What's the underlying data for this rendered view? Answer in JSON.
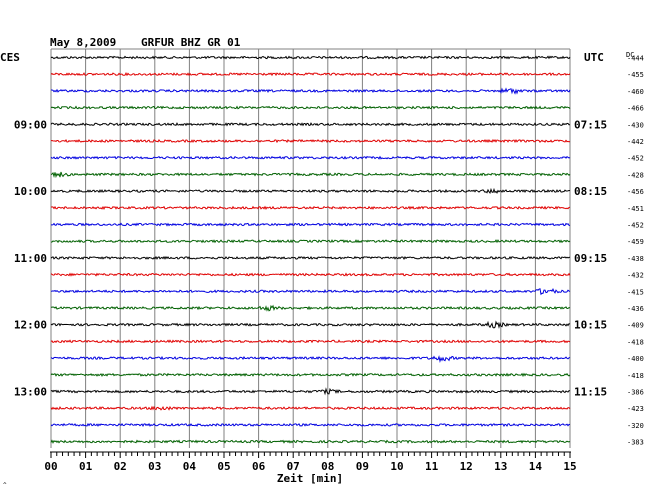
{
  "header": {
    "date": "May 8,2009",
    "station": "GRFUR BHZ GR 01",
    "left_zone": "CES",
    "right_zone": "UTC",
    "dc_label": "DC"
  },
  "colors": {
    "background": "#ffffff",
    "grid": "#808080",
    "trace_colors": [
      "#000000",
      "#e00000",
      "#0000e0",
      "#006000"
    ]
  },
  "chart_data": {
    "type": "line",
    "title": "May 8,2009   GRFUR BHZ GR 01",
    "xlabel": "Zeit [min]",
    "ylabel": "",
    "xlim": [
      0,
      15
    ],
    "x_ticks": [
      "00",
      "01",
      "02",
      "03",
      "04",
      "05",
      "06",
      "07",
      "08",
      "09",
      "10",
      "11",
      "12",
      "13",
      "14",
      "15"
    ],
    "trace_count": 24,
    "minutes_per_trace": 15,
    "left_time_labels": [
      {
        "trace": 4,
        "label": "09:00"
      },
      {
        "trace": 8,
        "label": "10:00"
      },
      {
        "trace": 12,
        "label": "11:00"
      },
      {
        "trace": 16,
        "label": "12:00"
      },
      {
        "trace": 20,
        "label": "13:00"
      }
    ],
    "right_time_labels": [
      {
        "trace": 4,
        "label": "07:15"
      },
      {
        "trace": 8,
        "label": "08:15"
      },
      {
        "trace": 12,
        "label": "09:15"
      },
      {
        "trace": 16,
        "label": "10:15"
      },
      {
        "trace": 20,
        "label": "11:15"
      }
    ],
    "dc_offsets": [
      "-444",
      "-455",
      "-460",
      "-466",
      "-430",
      "-442",
      "-452",
      "-428",
      "-456",
      "-451",
      "-452",
      "-459",
      "-438",
      "-432",
      "-415",
      "-436",
      "-409",
      "-418",
      "-400",
      "-418",
      "-386",
      "-423",
      "-320",
      "-383"
    ],
    "events": [
      {
        "trace": 2,
        "minute": 13.3,
        "strength": 2.2
      },
      {
        "trace": 7,
        "minute": 0.2,
        "strength": 2.0
      },
      {
        "trace": 8,
        "minute": 12.8,
        "strength": 1.4
      },
      {
        "trace": 14,
        "minute": 14.3,
        "strength": 2.8
      },
      {
        "trace": 15,
        "minute": 6.3,
        "strength": 1.8
      },
      {
        "trace": 16,
        "minute": 12.8,
        "strength": 2.2
      },
      {
        "trace": 18,
        "minute": 11.3,
        "strength": 2.4
      },
      {
        "trace": 20,
        "minute": 8.0,
        "strength": 1.5
      },
      {
        "trace": 21,
        "minute": 3.2,
        "strength": 1.4
      }
    ]
  }
}
